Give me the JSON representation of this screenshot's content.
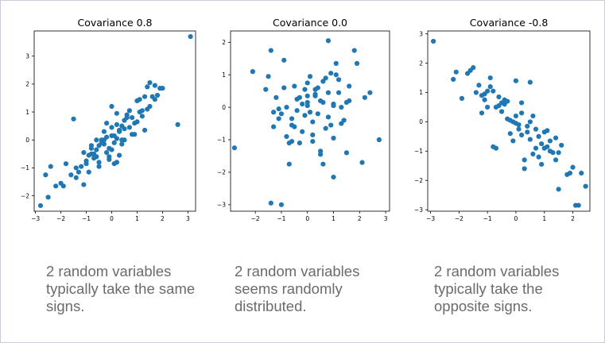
{
  "slide": {
    "captions": [
      "2 random variables typically take the same signs.",
      "2 random variables seems randomly distributed.",
      "2 random variables typically take the opposite signs."
    ]
  },
  "chart_data": [
    {
      "type": "scatter",
      "title": "Covariance 0.8",
      "xlabel": "",
      "ylabel": "",
      "xlim": [
        -3.05,
        3.3
      ],
      "ylim": [
        -2.55,
        3.9
      ],
      "xticks": [
        -3,
        -2,
        -1,
        0,
        1,
        2,
        3
      ],
      "yticks": [
        -2,
        -1,
        0,
        1,
        2,
        3
      ],
      "color": "#1f77b4",
      "series": [
        {
          "name": "samples",
          "x": [
            -2.8,
            -2.5,
            -2.6,
            -2.4,
            -2.2,
            -1.9,
            -2.0,
            -1.8,
            -1.6,
            -1.4,
            -1.5,
            -1.3,
            -1.2,
            -1.1,
            -1.0,
            -0.9,
            -0.8,
            -0.9,
            -0.7,
            -0.6,
            -0.5,
            -0.4,
            -0.3,
            -0.2,
            -0.1,
            0.0,
            0.1,
            0.2,
            0.3,
            0.4,
            0.5,
            0.6,
            0.7,
            0.8,
            0.9,
            1.0,
            1.1,
            1.2,
            1.3,
            1.4,
            1.5,
            1.6,
            1.7,
            1.8,
            1.9,
            2.0,
            2.6,
            3.1,
            -1.4,
            -0.8,
            -0.6,
            -0.3,
            -0.2,
            0.0,
            0.1,
            0.2,
            0.3,
            0.5,
            0.8,
            1.0,
            -0.5,
            -0.4,
            -0.1,
            0.2,
            0.4,
            0.6,
            0.9,
            1.1,
            1.3,
            1.5,
            -1.1,
            -1.0,
            -0.7,
            -0.5,
            0.0,
            0.3,
            0.7,
            1.2,
            1.7,
            -0.2,
            0.1,
            -0.3,
            0.4,
            -0.6,
            0.0,
            0.5,
            -0.8,
            1.4,
            0.2,
            -0.1
          ],
          "y": [
            -2.35,
            -2.05,
            -1.25,
            -0.95,
            -1.65,
            -1.65,
            -1.55,
            -0.85,
            -1.25,
            -1.35,
            0.75,
            -1.15,
            -0.95,
            -1.6,
            -0.85,
            -0.55,
            -0.2,
            -1.15,
            -0.65,
            -0.35,
            -0.8,
            -0.1,
            0.0,
            -0.45,
            -0.3,
            0.45,
            0.15,
            0.55,
            0.3,
            0.0,
            0.7,
            0.9,
            1.05,
            0.8,
            0.2,
            1.4,
            1.45,
            1.05,
            1.55,
            1.9,
            2.05,
            1.55,
            1.95,
            1.6,
            1.85,
            1.85,
            0.55,
            3.7,
            -1.0,
            -0.5,
            -0.6,
            -0.15,
            0.1,
            -0.35,
            -0.1,
            0.05,
            0.35,
            0.4,
            0.2,
            0.65,
            -0.95,
            0.0,
            -0.7,
            -0.8,
            0.5,
            0.8,
            0.6,
            1.0,
            0.35,
            1.2,
            -0.45,
            -0.75,
            -0.5,
            -0.2,
            0.15,
            -0.55,
            0.45,
            0.85,
            1.45,
            0.6,
            -0.85,
            0.3,
            -0.15,
            0.0,
            1.2,
            0.0,
            -0.3,
            1.1,
            0.95,
            -0.6
          ]
        }
      ]
    },
    {
      "type": "scatter",
      "title": "Covariance 0.0",
      "xlabel": "",
      "ylabel": "",
      "xlim": [
        -2.95,
        3.15
      ],
      "ylim": [
        -3.2,
        2.35
      ],
      "xticks": [
        -2,
        -1,
        0,
        1,
        2,
        3
      ],
      "yticks": [
        -3,
        -2,
        -1,
        0,
        1,
        2
      ],
      "color": "#1f77b4",
      "series": [
        {
          "name": "samples",
          "x": [
            -2.8,
            -2.1,
            -1.6,
            -1.5,
            -1.3,
            -1.4,
            -1.0,
            -1.3,
            -1.1,
            -0.9,
            -0.8,
            -0.7,
            -0.6,
            -0.5,
            -0.4,
            -0.3,
            -0.2,
            -0.1,
            0.0,
            0.1,
            0.2,
            0.3,
            0.4,
            0.5,
            0.6,
            0.7,
            0.8,
            0.9,
            1.0,
            1.1,
            1.2,
            1.3,
            1.4,
            1.5,
            1.6,
            1.8,
            2.1,
            2.4,
            2.75,
            -1.4,
            -1.0,
            -0.8,
            -0.5,
            -0.3,
            0.0,
            0.2,
            0.5,
            0.8,
            1.0,
            1.2,
            -0.9,
            -0.6,
            -0.2,
            0.1,
            0.3,
            0.6,
            0.9,
            1.1,
            1.5,
            2.2,
            -1.2,
            -0.7,
            0.0,
            0.4,
            0.7,
            1.0,
            1.3,
            -0.4,
            0.2,
            0.5,
            -1.1,
            0.8,
            1.6,
            0.0,
            -0.6,
            0.3,
            1.9,
            -0.1,
            0.6,
            1.0
          ],
          "y": [
            -1.25,
            1.1,
            0.55,
            0.95,
            -0.15,
            -2.95,
            -3.0,
            -0.6,
            -0.35,
            1.45,
            -0.9,
            -1.75,
            -0.55,
            0.65,
            -0.1,
            0.3,
            0.1,
            -0.25,
            0.75,
            0.95,
            -0.45,
            0.35,
            0.6,
            -1.35,
            0.15,
            -0.65,
            2.05,
            1.05,
            0.1,
            1.0,
            0.45,
            0.0,
            -0.4,
            0.15,
            0.65,
            1.75,
            -1.7,
            0.45,
            -1.0,
            1.75,
            -0.2,
            0.0,
            -0.6,
            -1.1,
            0.35,
            -0.85,
            0.2,
            -0.3,
            -2.15,
            0.85,
            0.6,
            -0.35,
            -0.75,
            -0.15,
            0.55,
            0.8,
            -0.55,
            1.35,
            -1.4,
            0.3,
            0.3,
            -1.1,
            0.15,
            -0.2,
            0.9,
            0.05,
            -0.5,
            0.25,
            -1.05,
            -1.45,
            -0.05,
            0.45,
            0.2,
            0.05,
            -1.05,
            0.4,
            1.35,
            0.55,
            -1.75,
            -0.95
          ]
        }
      ]
    },
    {
      "type": "scatter",
      "title": "Covariance -0.8",
      "xlabel": "",
      "ylabel": "",
      "xlim": [
        -3.1,
        2.6
      ],
      "ylim": [
        -3.05,
        3.1
      ],
      "xticks": [
        -3,
        -2,
        -1,
        0,
        1,
        2
      ],
      "yticks": [
        -3,
        -2,
        -1,
        0,
        1,
        2,
        3
      ],
      "color": "#1f77b4",
      "series": [
        {
          "name": "samples",
          "x": [
            -2.9,
            -2.2,
            -2.1,
            -1.9,
            -1.6,
            -1.5,
            -1.4,
            -1.3,
            -1.2,
            -1.1,
            -1.0,
            -0.9,
            -0.8,
            -0.7,
            -0.6,
            -0.5,
            -0.4,
            -0.3,
            -0.2,
            -0.1,
            0.0,
            0.1,
            0.2,
            0.3,
            0.4,
            0.5,
            0.6,
            0.7,
            0.8,
            0.9,
            1.0,
            1.1,
            1.2,
            1.3,
            1.4,
            1.5,
            1.6,
            1.8,
            2.0,
            2.3,
            2.45,
            -1.7,
            -1.2,
            -0.9,
            -0.6,
            -0.4,
            -0.2,
            0.0,
            0.2,
            0.5,
            0.8,
            1.1,
            1.4,
            -1.0,
            -0.7,
            -0.3,
            0.1,
            0.3,
            0.6,
            0.9,
            1.2,
            1.5,
            1.9,
            2.1,
            2.2,
            -0.5,
            0.0,
            0.4,
            -0.8,
            0.7,
            1.0,
            -1.1,
            0.2,
            -0.1,
            0.5
          ],
          "y": [
            2.75,
            1.45,
            1.7,
            0.8,
            1.75,
            1.85,
            1.0,
            1.25,
            0.9,
            0.75,
            0.5,
            1.2,
            1.05,
            -0.9,
            0.55,
            0.35,
            0.75,
            0.1,
            -0.4,
            0.0,
            1.4,
            -0.1,
            0.3,
            -1.6,
            -0.35,
            1.35,
            -1.1,
            -0.25,
            -0.5,
            -0.75,
            -0.9,
            -0.3,
            -1.0,
            -1.05,
            -0.55,
            -2.3,
            -0.8,
            -1.8,
            -1.55,
            -1.75,
            -2.2,
            1.65,
            0.3,
            1.5,
            0.85,
            0.6,
            0.05,
            -0.05,
            -0.45,
            -0.6,
            -1.2,
            -0.85,
            -1.3,
            1.05,
            0.5,
            0.7,
            -0.25,
            -1.3,
            0.2,
            -1.45,
            -0.65,
            -1.05,
            -1.75,
            -2.85,
            -2.85,
            0.65,
            0.2,
            -0.15,
            -0.85,
            -0.9,
            -0.35,
            0.95,
            0.65,
            -0.65,
            0.0
          ]
        }
      ]
    }
  ]
}
